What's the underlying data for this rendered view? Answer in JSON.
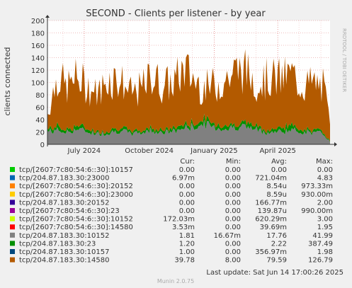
{
  "chart_data": {
    "type": "area",
    "title": "SECOND - Clients per listener - by year",
    "ylabel": "clients connected",
    "xlabel": "",
    "ylim": [
      0,
      200
    ],
    "yticks": [
      0,
      20,
      40,
      60,
      80,
      100,
      120,
      140,
      160,
      180,
      200
    ],
    "x_tick_labels": [
      "July 2024",
      "October 2024",
      "January 2025",
      "April 2025"
    ],
    "x_range": [
      "2024-05-10",
      "2025-06-14"
    ],
    "x_ticks": [
      "2024-07-01",
      "2024-10-01",
      "2025-01-01",
      "2025-04-01"
    ],
    "watermark": "RRDTOOL / TOBI OETIKER",
    "footer": "Munin 2.0.75",
    "last_update": "Last update: Sat Jun 14 17:00:26 2025",
    "columns": [
      "Cur:",
      "Min:",
      "Avg:",
      "Max:"
    ],
    "legend": [
      {
        "name": "tcp/[2607:7c80:54:6::30]:10157",
        "color": "#00cc00",
        "cur": "0.00",
        "min": "0.00",
        "avg": "0.00",
        "max": "0.00"
      },
      {
        "name": "tcp/204.87.183.30:23000",
        "color": "#0066b3",
        "cur": "6.97m",
        "min": "0.00",
        "avg": "721.04m",
        "max": "4.83"
      },
      {
        "name": "tcp/[2607:7c80:54:6::30]:20152",
        "color": "#ff8000",
        "cur": "0.00",
        "min": "0.00",
        "avg": "8.54u",
        "max": "973.33m"
      },
      {
        "name": "tcp/[2607:7c80:54:6::30]:23000",
        "color": "#ffcc00",
        "cur": "0.00",
        "min": "0.00",
        "avg": "8.59u",
        "max": "930.00m"
      },
      {
        "name": "tcp/204.87.183.30:20152",
        "color": "#330099",
        "cur": "0.00",
        "min": "0.00",
        "avg": "166.77m",
        "max": "2.00"
      },
      {
        "name": "tcp/[2607:7c80:54:6::30]:23",
        "color": "#990099",
        "cur": "0.00",
        "min": "0.00",
        "avg": "139.87u",
        "max": "990.00m"
      },
      {
        "name": "tcp/[2607:7c80:54:6::30]:10152",
        "color": "#ccff00",
        "cur": "172.03m",
        "min": "0.00",
        "avg": "620.29m",
        "max": "3.00"
      },
      {
        "name": "tcp/[2607:7c80:54:6::30]:14580",
        "color": "#ff0000",
        "cur": "3.53m",
        "min": "0.00",
        "avg": "39.69m",
        "max": "1.95"
      },
      {
        "name": "tcp/204.87.183.30:10152",
        "color": "#808080",
        "cur": "1.81",
        "min": "16.67m",
        "avg": "17.76",
        "max": "41.99"
      },
      {
        "name": "tcp/204.87.183.30:23",
        "color": "#008f00",
        "cur": "1.20",
        "min": "0.00",
        "avg": "2.22",
        "max": "387.49"
      },
      {
        "name": "tcp/204.87.183.30:10157",
        "color": "#00487d",
        "cur": "1.00",
        "min": "0.00",
        "avg": "356.97m",
        "max": "1.98"
      },
      {
        "name": "tcp/204.87.183.30:14580",
        "color": "#b35a00",
        "cur": "39.78",
        "min": "8.00",
        "avg": "79.59",
        "max": "126.79"
      }
    ],
    "series_samples": {
      "dates": [
        "2024-05-10",
        "2024-05-25",
        "2024-06-05",
        "2024-06-20",
        "2024-07-05",
        "2024-07-20",
        "2024-08-05",
        "2024-08-20",
        "2024-09-05",
        "2024-09-20",
        "2024-10-05",
        "2024-10-20",
        "2024-11-05",
        "2024-11-20",
        "2024-12-05",
        "2024-12-20",
        "2025-01-05",
        "2025-01-20",
        "2025-02-05",
        "2025-02-20",
        "2025-03-05",
        "2025-03-20",
        "2025-04-05",
        "2025-04-20",
        "2025-05-05",
        "2025-05-20",
        "2025-06-05",
        "2025-06-14"
      ],
      "total": [
        60,
        138,
        110,
        130,
        115,
        98,
        130,
        128,
        100,
        108,
        135,
        115,
        122,
        148,
        125,
        110,
        118,
        130,
        148,
        138,
        120,
        130,
        128,
        138,
        115,
        120,
        112,
        40
      ],
      "gray": [
        22,
        24,
        20,
        26,
        22,
        18,
        20,
        24,
        18,
        20,
        24,
        20,
        22,
        28,
        30,
        34,
        28,
        26,
        32,
        28,
        24,
        20,
        22,
        24,
        22,
        20,
        18,
        4
      ],
      "green": [
        4,
        6,
        5,
        6,
        4,
        3,
        4,
        5,
        3,
        4,
        5,
        4,
        5,
        6,
        6,
        8,
        6,
        5,
        6,
        6,
        5,
        4,
        6,
        8,
        5,
        4,
        3,
        1
      ]
    }
  }
}
